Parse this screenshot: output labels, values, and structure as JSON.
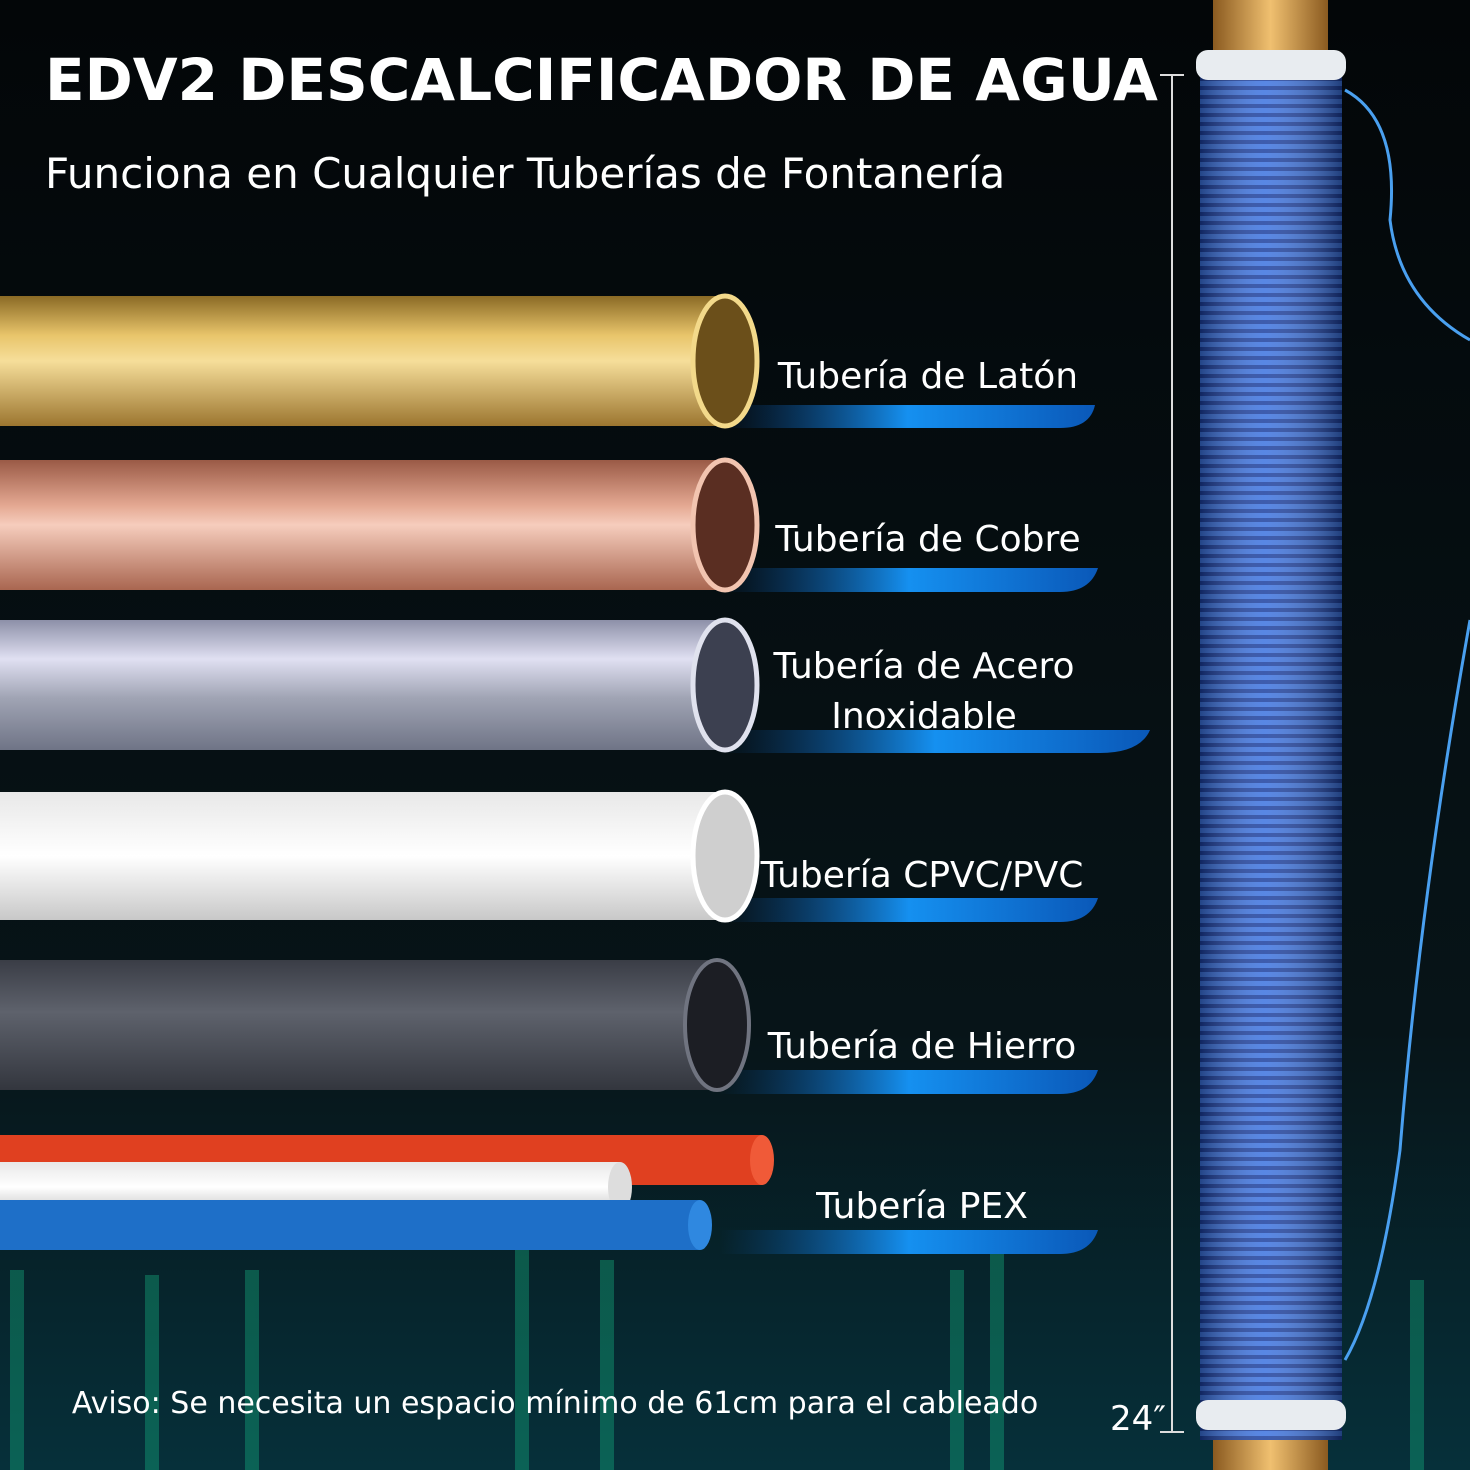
{
  "header": {
    "title": "EDV2 DESCALCIFICADOR DE AGUA",
    "subtitle": "Funciona en Cualquier Tuberías de Fontanería"
  },
  "pipes": [
    {
      "lines": [
        "Tubería de Latón"
      ]
    },
    {
      "lines": [
        "Tubería de Cobre"
      ]
    },
    {
      "lines": [
        "Tubería de Acero",
        "Inoxidable"
      ]
    },
    {
      "lines": [
        "Tubería CPVC/PVC"
      ]
    },
    {
      "lines": [
        "Tubería de Hierro"
      ]
    },
    {
      "lines": [
        "Tubería PEX"
      ]
    }
  ],
  "notice": "Aviso: Se necesita un espacio mínimo de 61cm para el cableado",
  "measurement": "24″"
}
